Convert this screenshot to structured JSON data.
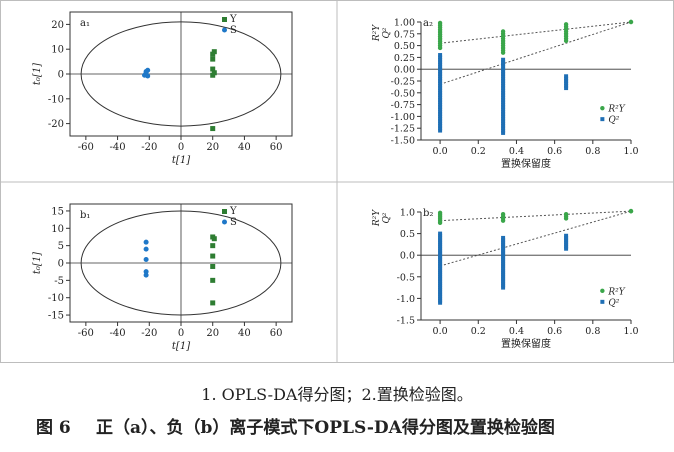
{
  "figure": {
    "caption_line1": "1. OPLS-DA得分图；2.置换检验图。",
    "caption_number": "图 6",
    "caption_title": "正（a）、负（b）离子模式下OPLS-DA得分图及置换检验图",
    "colors": {
      "groupY": "#2e7d32",
      "groupS": "#1f78c8",
      "r2": "#3aa64a",
      "q2": "#1f6fb5",
      "border": "#bdbdbd"
    }
  },
  "chart_data": [
    {
      "id": "a1",
      "type": "scatter",
      "panel_label": "a₁",
      "xlabel": "t[1]",
      "ylabel": "t₀[1]",
      "xlim": [
        -70,
        70
      ],
      "ylim": [
        -25,
        25
      ],
      "xticks": [
        -60,
        -40,
        -20,
        0,
        20,
        40,
        60
      ],
      "yticks": [
        -20,
        -10,
        0,
        10,
        20
      ],
      "legend": [
        "Y",
        "S"
      ],
      "ellipse": {
        "rx": 63,
        "ry": 21
      },
      "series": [
        {
          "name": "Y",
          "marker": "square",
          "points": [
            [
              20,
              8
            ],
            [
              21,
              9
            ],
            [
              20,
              6
            ],
            [
              20,
              2
            ],
            [
              21,
              0.5
            ],
            [
              20,
              -0.5
            ],
            [
              20,
              -22
            ]
          ]
        },
        {
          "name": "S",
          "marker": "circle",
          "points": [
            [
              -22,
              0.5
            ],
            [
              -21,
              1.5
            ],
            [
              -23,
              -0.5
            ],
            [
              -21,
              -0.8
            ],
            [
              -22,
              1
            ]
          ]
        }
      ]
    },
    {
      "id": "a2",
      "type": "scatter",
      "panel_label": "a₂",
      "xlabel": "置换保留度",
      "ylabel_top": "R²Y",
      "ylabel_bottom": "Q²",
      "xlim": [
        -0.1,
        1.0
      ],
      "ylim": [
        -1.5,
        1.0
      ],
      "xticks": [
        0.0,
        0.2,
        0.4,
        0.6,
        0.8,
        1.0
      ],
      "yticks": [
        -1.5,
        -1.25,
        -1.0,
        -0.75,
        -0.5,
        -0.25,
        0.0,
        0.25,
        0.5,
        0.75,
        1.0
      ],
      "legend": [
        "R²Y",
        "Q²"
      ],
      "r2_line": {
        "x": [
          0,
          1.0
        ],
        "y": [
          0.55,
          1.0
        ]
      },
      "q2_line": {
        "x": [
          0,
          1.0
        ],
        "y": [
          -0.32,
          1.0
        ]
      },
      "series": [
        {
          "name": "R²Y",
          "groups": [
            {
              "x": 0.0,
              "from": 0.45,
              "to": 0.98
            },
            {
              "x": 0.33,
              "from": 0.35,
              "to": 0.8
            },
            {
              "x": 0.66,
              "from": 0.6,
              "to": 0.95
            },
            {
              "x": 1.0,
              "from": 1.0,
              "to": 1.0
            }
          ]
        },
        {
          "name": "Q²",
          "groups": [
            {
              "x": 0.0,
              "from": -1.3,
              "to": 0.3
            },
            {
              "x": 0.33,
              "from": -1.35,
              "to": 0.2
            },
            {
              "x": 0.66,
              "from": -0.4,
              "to": -0.15
            }
          ]
        }
      ]
    },
    {
      "id": "b1",
      "type": "scatter",
      "panel_label": "b₁",
      "xlabel": "t[1]",
      "ylabel": "t₀[1]",
      "xlim": [
        -70,
        70
      ],
      "ylim": [
        -17,
        17
      ],
      "xticks": [
        -60,
        -40,
        -20,
        0,
        20,
        40,
        60
      ],
      "yticks": [
        -15,
        -10,
        -5,
        0,
        5,
        10,
        15
      ],
      "legend": [
        "Y",
        "S"
      ],
      "ellipse": {
        "rx": 63,
        "ry": 15
      },
      "series": [
        {
          "name": "Y",
          "marker": "square",
          "points": [
            [
              20,
              7.5
            ],
            [
              21,
              7
            ],
            [
              20,
              5
            ],
            [
              20,
              2
            ],
            [
              20,
              -1
            ],
            [
              20,
              -5
            ],
            [
              20,
              -11.5
            ]
          ]
        },
        {
          "name": "S",
          "marker": "circle",
          "points": [
            [
              -22,
              6
            ],
            [
              -22,
              4
            ],
            [
              -22,
              1
            ],
            [
              -22,
              -2.5
            ],
            [
              -22,
              -3.5
            ]
          ]
        }
      ]
    },
    {
      "id": "b2",
      "type": "scatter",
      "panel_label": "b₂",
      "xlabel": "置换保留度",
      "ylabel_top": "R²Y",
      "ylabel_bottom": "Q²",
      "xlim": [
        -0.1,
        1.0
      ],
      "ylim": [
        -1.5,
        1.0
      ],
      "xticks": [
        0.0,
        0.2,
        0.4,
        0.6,
        0.8,
        1.0
      ],
      "yticks": [
        -1.5,
        -1.0,
        -0.5,
        0.0,
        0.5,
        1.0
      ],
      "legend": [
        "R²Y",
        "Q²"
      ],
      "r2_line": {
        "x": [
          0,
          1.0
        ],
        "y": [
          0.8,
          1.02
        ]
      },
      "q2_line": {
        "x": [
          0,
          1.0
        ],
        "y": [
          -0.25,
          1.02
        ]
      },
      "series": [
        {
          "name": "R²Y",
          "groups": [
            {
              "x": 0.0,
              "from": 0.75,
              "to": 0.98
            },
            {
              "x": 0.33,
              "from": 0.8,
              "to": 0.95
            },
            {
              "x": 0.66,
              "from": 0.85,
              "to": 0.95
            },
            {
              "x": 1.0,
              "from": 1.02,
              "to": 1.02
            }
          ]
        },
        {
          "name": "Q²",
          "groups": [
            {
              "x": 0.0,
              "from": -1.1,
              "to": 0.5
            },
            {
              "x": 0.33,
              "from": -0.75,
              "to": 0.4
            },
            {
              "x": 0.66,
              "from": 0.15,
              "to": 0.45
            }
          ]
        }
      ]
    }
  ]
}
